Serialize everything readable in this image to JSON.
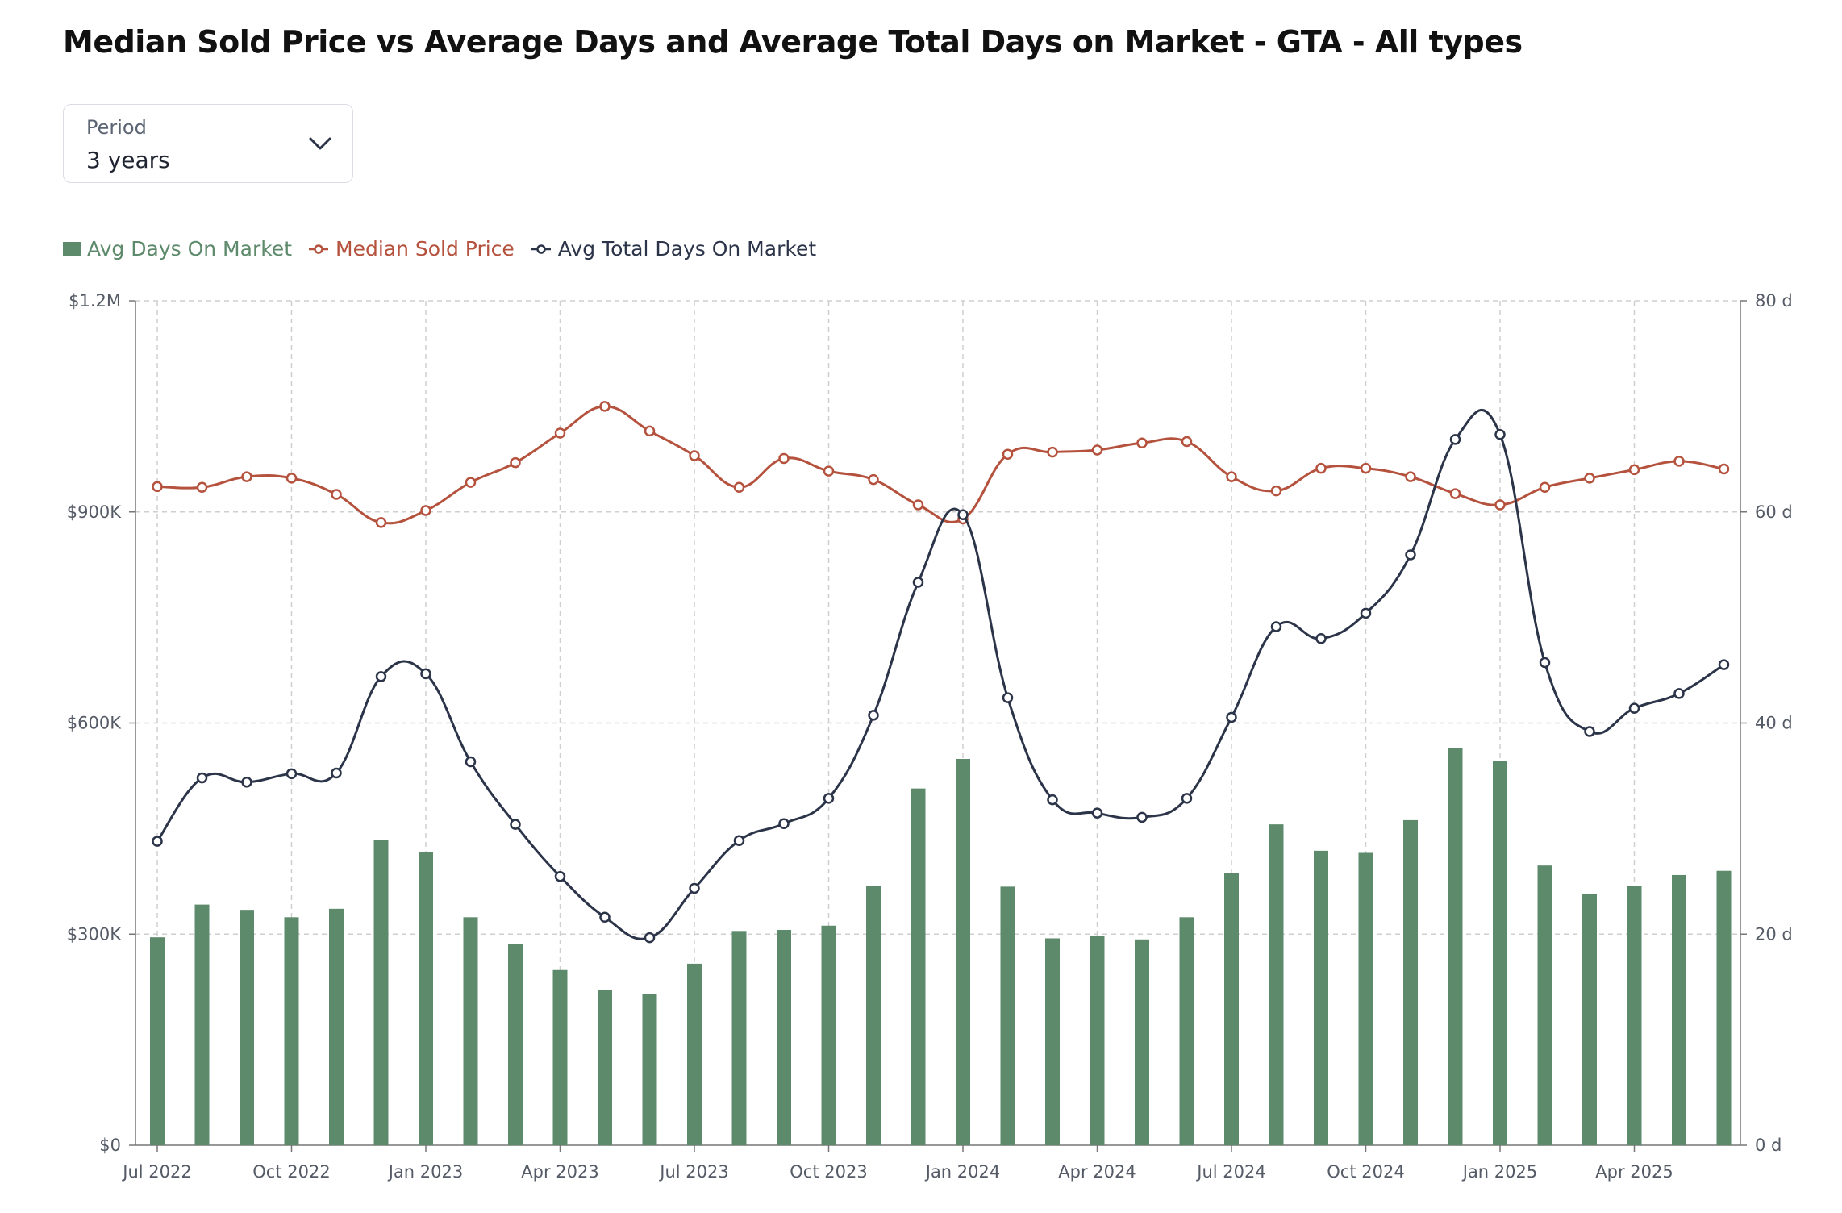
{
  "title": "Median Sold Price vs Average Days and Average Total Days on Market - GTA - All types",
  "period": {
    "label": "Period",
    "value": "3 years"
  },
  "colors": {
    "bar": "#5e8a6c",
    "price": "#b5523e",
    "total": "#2b3448",
    "grid": "#cfcfcf"
  },
  "chart_data": {
    "type": "bar+line",
    "x_labels": [
      "Jul 2022",
      "Oct 2022",
      "Jan 2023",
      "Apr 2023",
      "Jul 2023",
      "Oct 2023",
      "Jan 2024",
      "Apr 2024",
      "Jul 2024",
      "Oct 2024",
      "Jan 2025",
      "Apr 2025"
    ],
    "months": [
      "2022-07",
      "2022-08",
      "2022-09",
      "2022-10",
      "2022-11",
      "2022-12",
      "2023-01",
      "2023-02",
      "2023-03",
      "2023-04",
      "2023-05",
      "2023-06",
      "2023-07",
      "2023-08",
      "2023-09",
      "2023-10",
      "2023-11",
      "2023-12",
      "2024-01",
      "2024-02",
      "2024-03",
      "2024-04",
      "2024-05",
      "2024-06",
      "2024-07",
      "2024-08",
      "2024-09",
      "2024-10",
      "2024-11",
      "2024-12",
      "2025-01",
      "2025-02",
      "2025-03",
      "2025-04",
      "2025-05",
      "2025-06"
    ],
    "left_axis": {
      "ticks": [
        "$0",
        "$300K",
        "$600K",
        "$900K",
        "$1.2M"
      ],
      "min": 0,
      "max": 1200000
    },
    "right_axis": {
      "ticks": [
        "0 d",
        "20 d",
        "40 d",
        "60 d",
        "80 d"
      ],
      "min": 0,
      "max": 80
    },
    "legend_position": "top-left",
    "grid": true,
    "series": [
      {
        "name": "Avg Days On Market",
        "type": "bar",
        "axis": "right",
        "values": [
          19.7,
          22.8,
          22.3,
          21.6,
          22.4,
          28.9,
          27.8,
          21.6,
          19.1,
          16.6,
          14.7,
          14.3,
          17.2,
          20.3,
          20.4,
          20.8,
          24.6,
          33.8,
          36.6,
          24.5,
          19.6,
          19.8,
          19.5,
          21.6,
          25.8,
          30.4,
          27.9,
          27.7,
          30.8,
          37.6,
          36.4,
          26.5,
          23.8,
          24.6,
          25.6,
          26.0
        ]
      },
      {
        "name": "Median Sold Price",
        "type": "line",
        "axis": "left",
        "values": [
          936000,
          935000,
          950000,
          948000,
          925000,
          885000,
          902000,
          942000,
          970000,
          1012000,
          1050000,
          1015000,
          980000,
          935000,
          976000,
          958000,
          946000,
          910000,
          890000,
          982000,
          985000,
          988000,
          998000,
          1000000,
          950000,
          930000,
          962000,
          962000,
          950000,
          926000,
          910000,
          935000,
          948000,
          960000,
          972000,
          961000
        ]
      },
      {
        "name": "Avg Total Days On Market",
        "type": "line",
        "axis": "left",
        "values": [
          432000,
          522000,
          516000,
          528000,
          529000,
          666000,
          670000,
          545000,
          456000,
          382000,
          324000,
          295000,
          365000,
          433000,
          457000,
          493000,
          611000,
          800000,
          896000,
          636000,
          491000,
          472000,
          466000,
          493000,
          608000,
          737000,
          720000,
          756000,
          839000,
          1003000,
          1010000,
          686000,
          588000,
          621000,
          642000,
          683000
        ]
      }
    ]
  }
}
